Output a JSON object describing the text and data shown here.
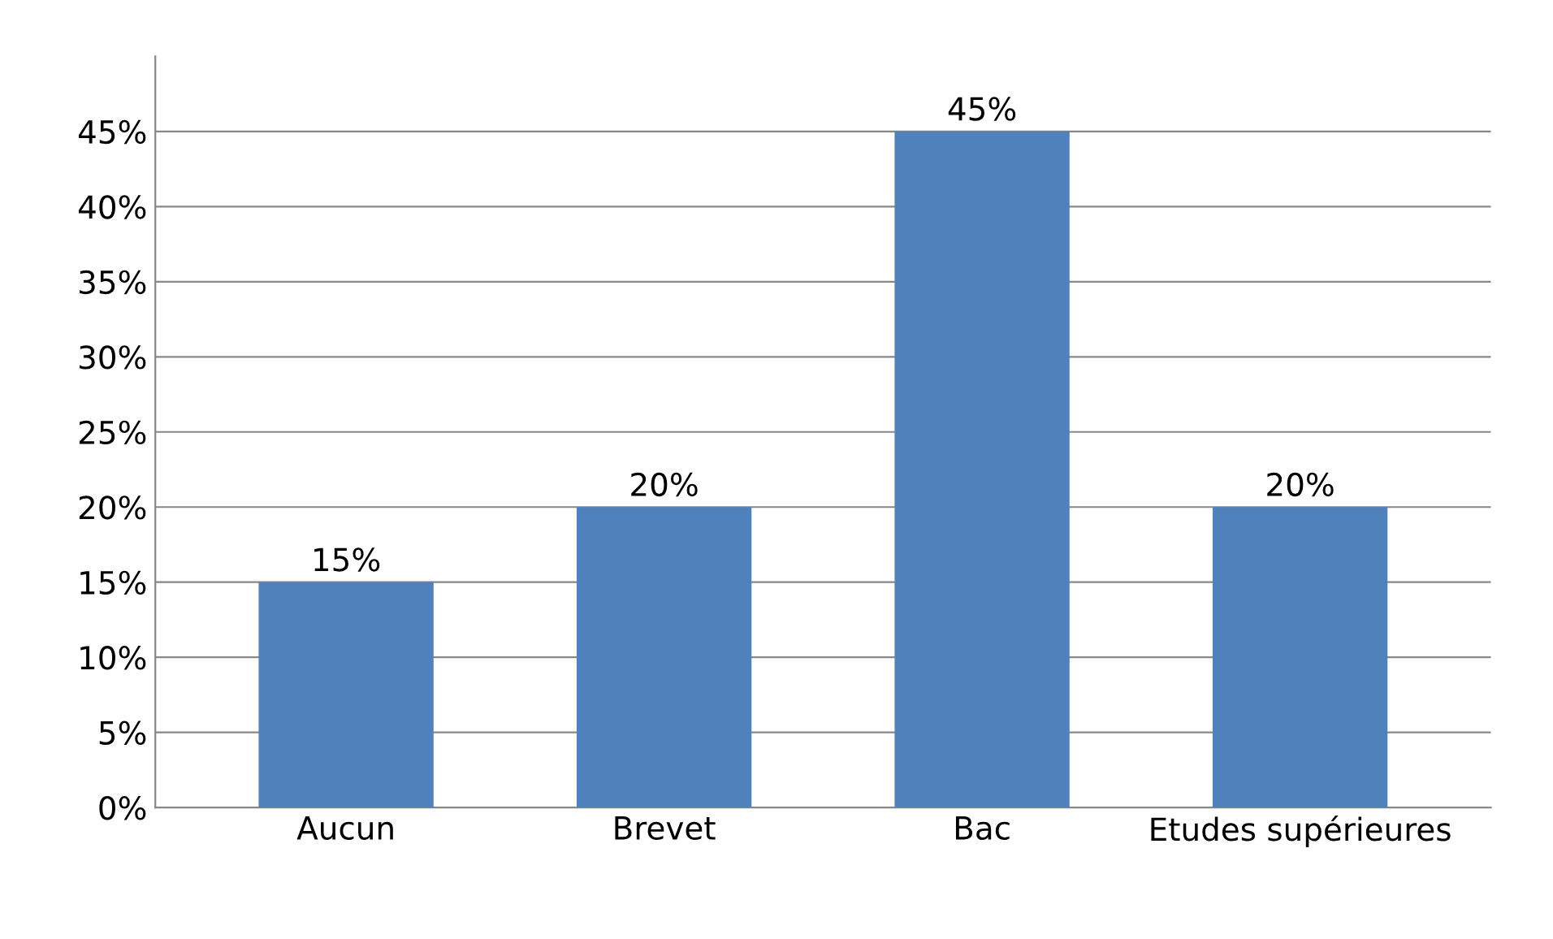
{
  "chart_data": {
    "type": "bar",
    "categories": [
      "Aucun",
      "Brevet",
      "Bac",
      "Etudes supérieures"
    ],
    "values": [
      15,
      20,
      45,
      20
    ],
    "value_labels": [
      "15%",
      "20%",
      "45%",
      "20%"
    ],
    "color": "#4f81bd",
    "ylim": [
      0,
      50
    ],
    "yticks": [
      {
        "value": 0,
        "label": "0%"
      },
      {
        "value": 5,
        "label": "5%"
      },
      {
        "value": 10,
        "label": "10%"
      },
      {
        "value": 15,
        "label": "15%"
      },
      {
        "value": 20,
        "label": "20%"
      },
      {
        "value": 25,
        "label": "25%"
      },
      {
        "value": 30,
        "label": "30%"
      },
      {
        "value": 35,
        "label": "35%"
      },
      {
        "value": 40,
        "label": "40%"
      },
      {
        "value": 45,
        "label": "45%"
      }
    ],
    "grid": "y",
    "legend": false
  }
}
